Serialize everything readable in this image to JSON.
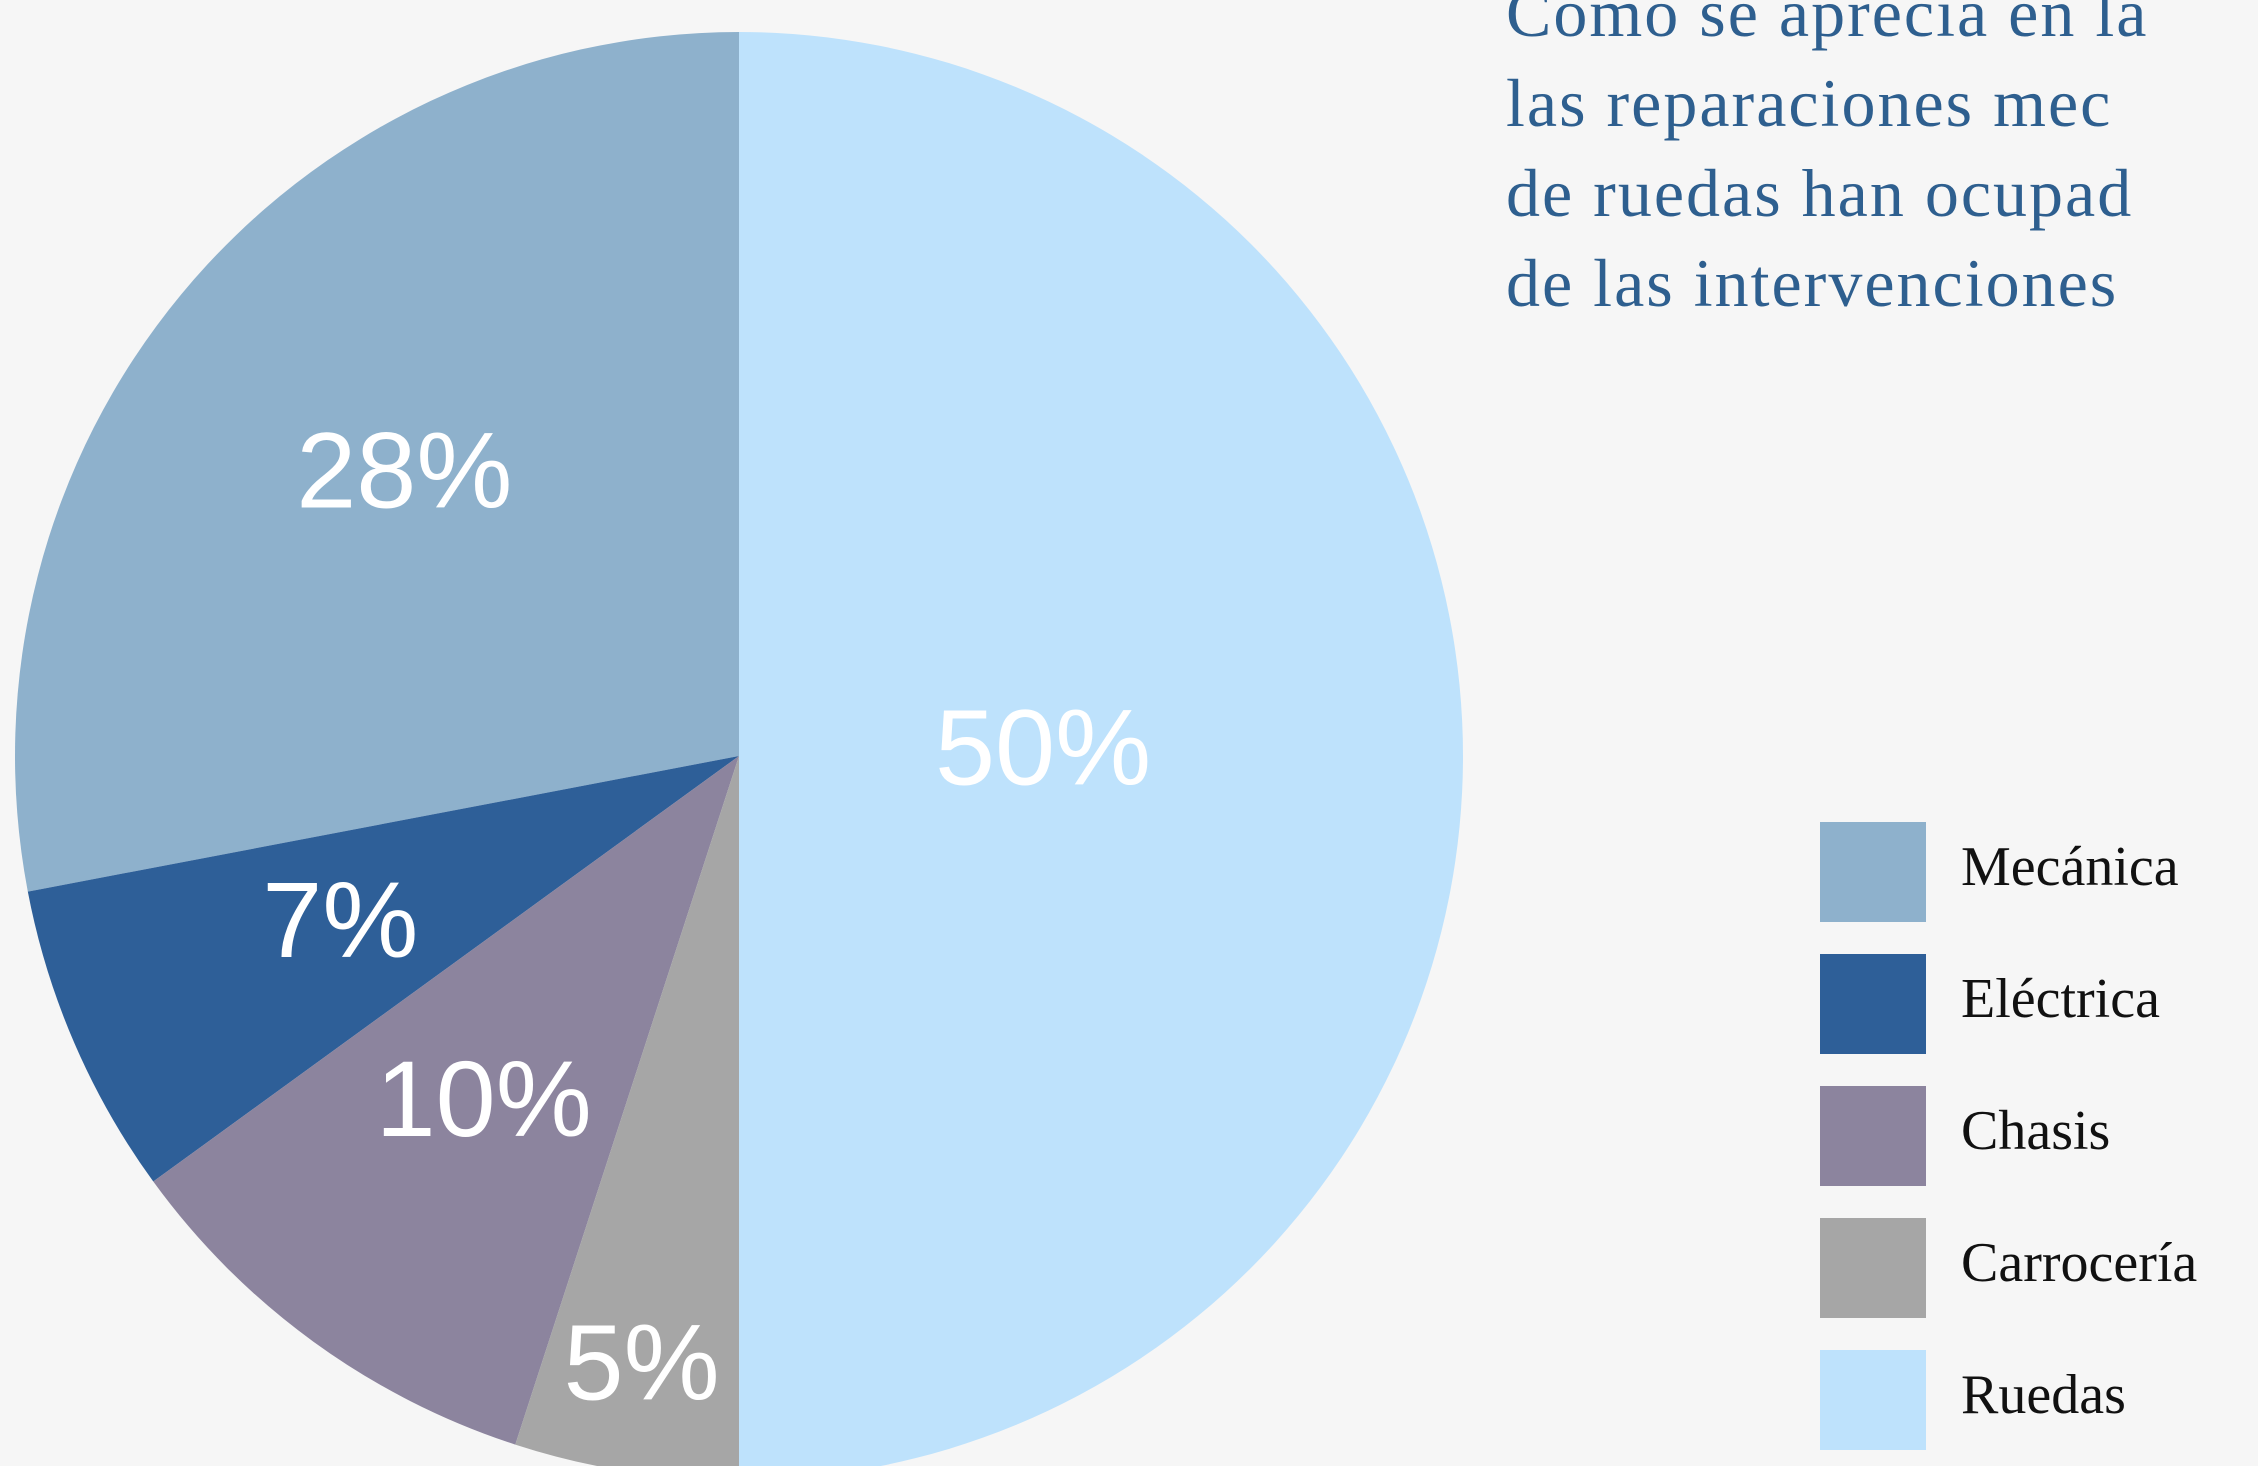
{
  "chart_data": {
    "type": "pie",
    "categories": [
      "Mecánica",
      "Eléctrica",
      "Chasis",
      "Carrocería",
      "Ruedas"
    ],
    "values": [
      28,
      7,
      10,
      5,
      50
    ],
    "value_labels": [
      "28%",
      "7%",
      "10%",
      "5%",
      "50%"
    ],
    "colors": [
      "#8eb1cc",
      "#2e5f98",
      "#8c849e",
      "#a6a6a6",
      "#bee2fc"
    ],
    "legend": "right"
  },
  "text": {
    "lines": [
      "Cómo se aprecia en la",
      "las reparaciones mec",
      "de ruedas han ocupad",
      "de las intervenciones"
    ]
  }
}
